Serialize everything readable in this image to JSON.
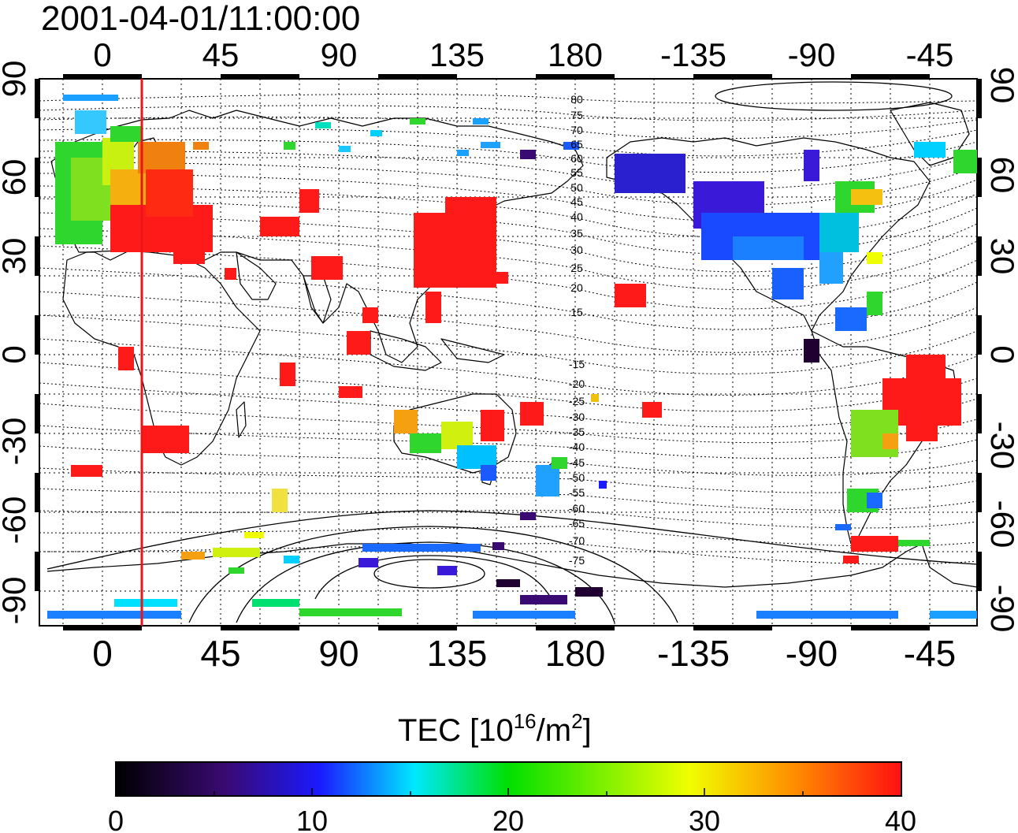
{
  "title": "2001-04-01/11:00:00",
  "map": {
    "lon_ticks": [
      "0",
      "45",
      "90",
      "135",
      "180",
      "-135",
      "-90",
      "-45"
    ],
    "lat_ticks": [
      "90",
      "60",
      "30",
      "0",
      "-30",
      "-60",
      "-90"
    ],
    "contour_labels_north": [
      "80",
      "75",
      "70",
      "65",
      "60",
      "55",
      "50",
      "45",
      "40",
      "35",
      "30",
      "25",
      "20",
      "15"
    ],
    "contour_labels_south": [
      "-15",
      "-20",
      "-25",
      "-30",
      "-35",
      "-40",
      "-45",
      "-50",
      "-55",
      "-60",
      "-65",
      "-70",
      "-75"
    ],
    "marker_longitude": 15,
    "marker_color": "#e8161a"
  },
  "colorbar": {
    "label_main": "TEC  [10",
    "label_exp1": "16",
    "label_mid": "/m",
    "label_exp2": "2",
    "label_end": "]",
    "ticks": [
      "0",
      "10",
      "20",
      "30",
      "40"
    ],
    "min": 0,
    "max": 40,
    "colors": [
      "#000000",
      "#3a0a73",
      "#1a1aff",
      "#00e8ff",
      "#00e000",
      "#f0ff00",
      "#ff9000",
      "#ff1010"
    ]
  }
}
